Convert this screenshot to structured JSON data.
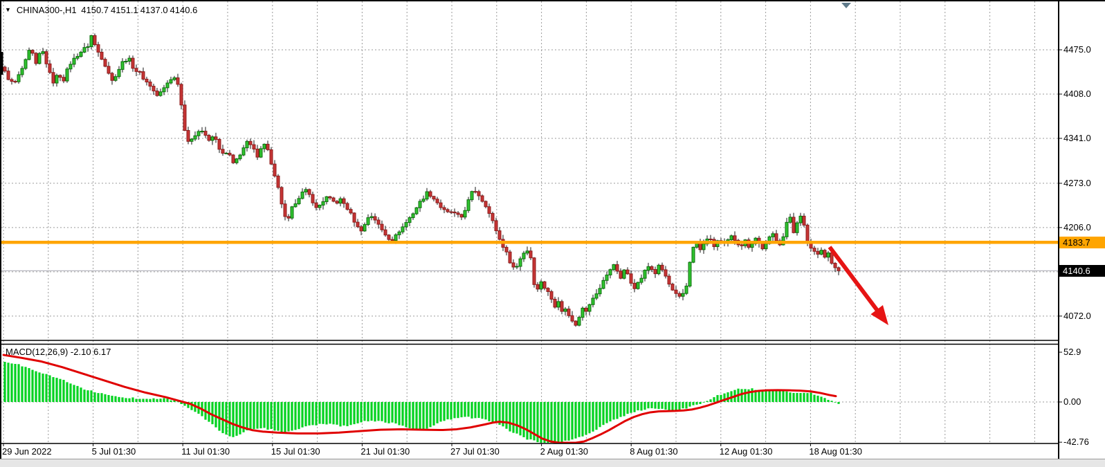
{
  "header": {
    "collapse_icon": "▼",
    "symbol": "CHINA300-,H1",
    "open": "4150.7",
    "high": "4151.1",
    "low": "4137.0",
    "close": "4140.6"
  },
  "chart_data": {
    "type": "candlestick",
    "title": "CHINA300-,H1",
    "timeframe": "H1",
    "ohlc_current": {
      "open": 4150.7,
      "high": 4151.1,
      "low": 4137.0,
      "close": 4140.6
    },
    "y_axis": {
      "tick_labels": [
        {
          "label": "4475.0",
          "value": 4475.0
        },
        {
          "label": "4408.0",
          "value": 4408.0
        },
        {
          "label": "4341.0",
          "value": 4341.0
        },
        {
          "label": "4273.0",
          "value": 4273.0
        },
        {
          "label": "4206.0",
          "value": 4206.0
        },
        {
          "label": "4072.0",
          "value": 4072.0
        }
      ],
      "grid_values": [
        4475,
        4408,
        4341,
        4273,
        4206,
        4139,
        4072
      ],
      "current_price": {
        "label": "4140.6",
        "value": 4140.6
      },
      "hline": {
        "label": "4183.7",
        "value": 4183.7,
        "color": "#ffa500"
      }
    },
    "x_axis": {
      "tick_labels": [
        "29 Jun 2022",
        "5 Jul 01:30",
        "11 Jul 01:30",
        "15 Jul 01:30",
        "21 Jul 01:30",
        "27 Jul 01:30",
        "2 Aug 01:30",
        "8 Aug 01:30",
        "12 Aug 01:30",
        "18 Aug 01:30"
      ]
    },
    "price_anchors": [
      [
        5,
        4445
      ],
      [
        12,
        4432
      ],
      [
        20,
        4422
      ],
      [
        28,
        4438
      ],
      [
        36,
        4455
      ],
      [
        44,
        4478
      ],
      [
        52,
        4452
      ],
      [
        60,
        4478
      ],
      [
        68,
        4452
      ],
      [
        76,
        4425
      ],
      [
        84,
        4438
      ],
      [
        92,
        4430
      ],
      [
        100,
        4452
      ],
      [
        110,
        4465
      ],
      [
        120,
        4475
      ],
      [
        128,
        4482
      ],
      [
        133,
        4500
      ],
      [
        138,
        4478
      ],
      [
        146,
        4465
      ],
      [
        154,
        4448
      ],
      [
        162,
        4428
      ],
      [
        170,
        4442
      ],
      [
        178,
        4458
      ],
      [
        186,
        4462
      ],
      [
        194,
        4445
      ],
      [
        202,
        4440
      ],
      [
        210,
        4428
      ],
      [
        218,
        4420
      ],
      [
        226,
        4405
      ],
      [
        234,
        4412
      ],
      [
        242,
        4425
      ],
      [
        250,
        4435
      ],
      [
        257,
        4425
      ],
      [
        263,
        4385
      ],
      [
        268,
        4348
      ],
      [
        274,
        4332
      ],
      [
        281,
        4345
      ],
      [
        288,
        4355
      ],
      [
        295,
        4350
      ],
      [
        302,
        4336
      ],
      [
        309,
        4346
      ],
      [
        316,
        4328
      ],
      [
        323,
        4315
      ],
      [
        330,
        4320
      ],
      [
        337,
        4302
      ],
      [
        344,
        4312
      ],
      [
        351,
        4325
      ],
      [
        358,
        4336
      ],
      [
        365,
        4326
      ],
      [
        372,
        4315
      ],
      [
        379,
        4332
      ],
      [
        386,
        4330
      ],
      [
        391,
        4305
      ],
      [
        397,
        4282
      ],
      [
        404,
        4258
      ],
      [
        411,
        4222
      ],
      [
        416,
        4215
      ],
      [
        422,
        4235
      ],
      [
        429,
        4248
      ],
      [
        436,
        4258
      ],
      [
        443,
        4262
      ],
      [
        450,
        4250
      ],
      [
        457,
        4235
      ],
      [
        464,
        4242
      ],
      [
        471,
        4252
      ],
      [
        478,
        4248
      ],
      [
        485,
        4243
      ],
      [
        492,
        4248
      ],
      [
        499,
        4240
      ],
      [
        506,
        4228
      ],
      [
        513,
        4214
      ],
      [
        520,
        4200
      ],
      [
        527,
        4210
      ],
      [
        534,
        4226
      ],
      [
        541,
        4220
      ],
      [
        548,
        4208
      ],
      [
        555,
        4198
      ],
      [
        562,
        4190
      ],
      [
        569,
        4188
      ],
      [
        576,
        4200
      ],
      [
        583,
        4208
      ],
      [
        590,
        4218
      ],
      [
        597,
        4228
      ],
      [
        604,
        4240
      ],
      [
        611,
        4250
      ],
      [
        618,
        4260
      ],
      [
        625,
        4252
      ],
      [
        632,
        4244
      ],
      [
        639,
        4234
      ],
      [
        646,
        4228
      ],
      [
        653,
        4230
      ],
      [
        660,
        4224
      ],
      [
        667,
        4222
      ],
      [
        674,
        4238
      ],
      [
        681,
        4258
      ],
      [
        688,
        4262
      ],
      [
        695,
        4250
      ],
      [
        702,
        4240
      ],
      [
        709,
        4222
      ],
      [
        715,
        4208
      ],
      [
        721,
        4190
      ],
      [
        727,
        4178
      ],
      [
        733,
        4165
      ],
      [
        739,
        4150
      ],
      [
        745,
        4142
      ],
      [
        751,
        4158
      ],
      [
        757,
        4168
      ],
      [
        763,
        4172
      ],
      [
        768,
        4158
      ],
      [
        772,
        4122
      ],
      [
        777,
        4112
      ],
      [
        782,
        4125
      ],
      [
        787,
        4115
      ],
      [
        792,
        4108
      ],
      [
        797,
        4098
      ],
      [
        802,
        4088
      ],
      [
        807,
        4096
      ],
      [
        812,
        4078
      ],
      [
        817,
        4084
      ],
      [
        822,
        4072
      ],
      [
        827,
        4065
      ],
      [
        832,
        4060
      ],
      [
        837,
        4072
      ],
      [
        842,
        4086
      ],
      [
        847,
        4078
      ],
      [
        852,
        4090
      ],
      [
        857,
        4098
      ],
      [
        862,
        4106
      ],
      [
        867,
        4115
      ],
      [
        872,
        4126
      ],
      [
        877,
        4133
      ],
      [
        882,
        4143
      ],
      [
        887,
        4152
      ],
      [
        892,
        4138
      ],
      [
        897,
        4130
      ],
      [
        902,
        4140
      ],
      [
        907,
        4136
      ],
      [
        912,
        4124
      ],
      [
        917,
        4116
      ],
      [
        922,
        4122
      ],
      [
        927,
        4130
      ],
      [
        932,
        4140
      ],
      [
        937,
        4147
      ],
      [
        942,
        4143
      ],
      [
        947,
        4137
      ],
      [
        952,
        4147
      ],
      [
        957,
        4142
      ],
      [
        962,
        4132
      ],
      [
        967,
        4120
      ],
      [
        972,
        4110
      ],
      [
        977,
        4104
      ],
      [
        982,
        4100
      ],
      [
        987,
        4106
      ],
      [
        992,
        4118
      ],
      [
        997,
        4155
      ],
      [
        1002,
        4175
      ],
      [
        1007,
        4182
      ],
      [
        1012,
        4172
      ],
      [
        1017,
        4180
      ],
      [
        1022,
        4190
      ],
      [
        1027,
        4186
      ],
      [
        1032,
        4178
      ],
      [
        1037,
        4186
      ],
      [
        1042,
        4182
      ],
      [
        1047,
        4180
      ],
      [
        1052,
        4186
      ],
      [
        1057,
        4192
      ],
      [
        1062,
        4188
      ],
      [
        1067,
        4182
      ],
      [
        1072,
        4180
      ],
      [
        1077,
        4186
      ],
      [
        1082,
        4178
      ],
      [
        1087,
        4183
      ],
      [
        1092,
        4190
      ],
      [
        1097,
        4182
      ],
      [
        1102,
        4175
      ],
      [
        1107,
        4180
      ],
      [
        1112,
        4190
      ],
      [
        1117,
        4196
      ],
      [
        1122,
        4188
      ],
      [
        1127,
        4182
      ],
      [
        1132,
        4192
      ],
      [
        1137,
        4212
      ],
      [
        1142,
        4222
      ],
      [
        1147,
        4200
      ],
      [
        1152,
        4215
      ],
      [
        1157,
        4222
      ],
      [
        1162,
        4208
      ],
      [
        1167,
        4185
      ],
      [
        1172,
        4175
      ],
      [
        1177,
        4170
      ],
      [
        1182,
        4168
      ],
      [
        1187,
        4172
      ],
      [
        1192,
        4162
      ],
      [
        1197,
        4167
      ],
      [
        1202,
        4152
      ],
      [
        1207,
        4144
      ],
      [
        1212,
        4140.6
      ]
    ],
    "indicator": {
      "name": "MACD",
      "params": "12,26,9",
      "values_label": "MACD(12,26,9) -2.10 6.17",
      "macd_last": -2.1,
      "signal_last": 6.17,
      "axis_ticks": [
        {
          "label": "52.9",
          "value": 52.9
        },
        {
          "label": "0.00",
          "value": 0.0
        },
        {
          "label": "-42.76",
          "value": -42.76
        }
      ],
      "macd_anchors": [
        [
          5,
          43
        ],
        [
          25,
          40
        ],
        [
          45,
          35
        ],
        [
          65,
          30
        ],
        [
          85,
          25
        ],
        [
          105,
          19
        ],
        [
          125,
          13
        ],
        [
          145,
          9
        ],
        [
          165,
          6
        ],
        [
          185,
          4.5
        ],
        [
          205,
          3.5
        ],
        [
          225,
          4
        ],
        [
          240,
          3.5
        ],
        [
          252,
          1.5
        ],
        [
          260,
          -1
        ],
        [
          272,
          -6
        ],
        [
          285,
          -12
        ],
        [
          298,
          -19
        ],
        [
          310,
          -26
        ],
        [
          322,
          -33
        ],
        [
          334,
          -37.5
        ],
        [
          345,
          -35
        ],
        [
          355,
          -31
        ],
        [
          365,
          -29
        ],
        [
          378,
          -28
        ],
        [
          390,
          -29
        ],
        [
          402,
          -31
        ],
        [
          413,
          -33
        ],
        [
          425,
          -30
        ],
        [
          438,
          -27
        ],
        [
          450,
          -25
        ],
        [
          465,
          -23
        ],
        [
          480,
          -24
        ],
        [
          495,
          -26
        ],
        [
          510,
          -24
        ],
        [
          525,
          -21
        ],
        [
          540,
          -20
        ],
        [
          555,
          -21
        ],
        [
          570,
          -23
        ],
        [
          585,
          -26
        ],
        [
          597,
          -29
        ],
        [
          610,
          -30
        ],
        [
          622,
          -26
        ],
        [
          635,
          -22
        ],
        [
          648,
          -19
        ],
        [
          660,
          -17
        ],
        [
          672,
          -16
        ],
        [
          684,
          -17
        ],
        [
          696,
          -18
        ],
        [
          708,
          -20
        ],
        [
          718,
          -23
        ],
        [
          728,
          -27
        ],
        [
          740,
          -32
        ],
        [
          752,
          -36
        ],
        [
          764,
          -40
        ],
        [
          776,
          -42
        ],
        [
          788,
          -44
        ],
        [
          798,
          -44
        ],
        [
          810,
          -43
        ],
        [
          822,
          -41
        ],
        [
          834,
          -38.5
        ],
        [
          846,
          -35
        ],
        [
          858,
          -31
        ],
        [
          870,
          -26
        ],
        [
          882,
          -21
        ],
        [
          894,
          -17
        ],
        [
          906,
          -13
        ],
        [
          918,
          -10
        ],
        [
          930,
          -8
        ],
        [
          942,
          -7
        ],
        [
          954,
          -7
        ],
        [
          966,
          -8.5
        ],
        [
          978,
          -9
        ],
        [
          990,
          -7
        ],
        [
          1002,
          -4
        ],
        [
          1014,
          -1
        ],
        [
          1026,
          3
        ],
        [
          1038,
          7
        ],
        [
          1050,
          10
        ],
        [
          1062,
          13
        ],
        [
          1074,
          14.5
        ],
        [
          1086,
          14
        ],
        [
          1098,
          12.5
        ],
        [
          1110,
          12
        ],
        [
          1122,
          13.5
        ],
        [
          1134,
          12
        ],
        [
          1146,
          10
        ],
        [
          1158,
          9
        ],
        [
          1170,
          10
        ],
        [
          1182,
          7
        ],
        [
          1194,
          4
        ],
        [
          1203,
          1
        ],
        [
          1212,
          -2.1
        ]
      ],
      "signal_anchors": [
        [
          5,
          50
        ],
        [
          30,
          47
        ],
        [
          60,
          43
        ],
        [
          90,
          37
        ],
        [
          120,
          30
        ],
        [
          150,
          23
        ],
        [
          180,
          16
        ],
        [
          210,
          10
        ],
        [
          240,
          5
        ],
        [
          260,
          1
        ],
        [
          275,
          -2
        ],
        [
          290,
          -7
        ],
        [
          305,
          -13
        ],
        [
          320,
          -18
        ],
        [
          335,
          -23
        ],
        [
          350,
          -27
        ],
        [
          365,
          -30
        ],
        [
          380,
          -31.5
        ],
        [
          400,
          -32.5
        ],
        [
          430,
          -33.5
        ],
        [
          460,
          -33.5
        ],
        [
          490,
          -32.5
        ],
        [
          520,
          -31
        ],
        [
          550,
          -29.5
        ],
        [
          580,
          -29
        ],
        [
          610,
          -29.5
        ],
        [
          640,
          -29.8
        ],
        [
          660,
          -29
        ],
        [
          680,
          -27
        ],
        [
          700,
          -24
        ],
        [
          712,
          -22
        ],
        [
          722,
          -21
        ],
        [
          735,
          -22
        ],
        [
          748,
          -25
        ],
        [
          760,
          -29
        ],
        [
          772,
          -34
        ],
        [
          784,
          -39
        ],
        [
          796,
          -42
        ],
        [
          808,
          -44.5
        ],
        [
          820,
          -45
        ],
        [
          832,
          -44
        ],
        [
          844,
          -42
        ],
        [
          856,
          -38.5
        ],
        [
          868,
          -34.5
        ],
        [
          880,
          -30
        ],
        [
          892,
          -25
        ],
        [
          904,
          -20
        ],
        [
          916,
          -16
        ],
        [
          928,
          -13
        ],
        [
          940,
          -11
        ],
        [
          952,
          -10
        ],
        [
          964,
          -9.7
        ],
        [
          976,
          -9.5
        ],
        [
          988,
          -9
        ],
        [
          1000,
          -8
        ],
        [
          1012,
          -6
        ],
        [
          1024,
          -3.5
        ],
        [
          1036,
          -0.5
        ],
        [
          1048,
          2.5
        ],
        [
          1060,
          5.5
        ],
        [
          1072,
          8.5
        ],
        [
          1084,
          10.5
        ],
        [
          1096,
          11.8
        ],
        [
          1108,
          12.4
        ],
        [
          1124,
          12.6
        ],
        [
          1140,
          12.4
        ],
        [
          1156,
          12
        ],
        [
          1172,
          11.2
        ],
        [
          1186,
          9.5
        ],
        [
          1198,
          7.5
        ],
        [
          1208,
          6.17
        ]
      ]
    },
    "annotations": {
      "trend_arrow": {
        "from_xy": [
          1199,
          357
        ],
        "to_xy": [
          1284,
          470
        ],
        "color": "#e61414"
      },
      "end_of_data_marker": "triangle-down"
    },
    "colors": {
      "bull_fill": "#2fc32f",
      "bull_stroke": "#0c6e0c",
      "bear_fill": "#c63535",
      "bear_stroke": "#8c1c1c",
      "wick": "#161616",
      "macd_bar": "#00d21f",
      "signal_line": "#e00000",
      "grid": "#9a9a9a",
      "hline": "#ffa500",
      "bid_line": "#b8b8c0",
      "frame": "#000000",
      "marker": "#5f7a8a"
    }
  }
}
